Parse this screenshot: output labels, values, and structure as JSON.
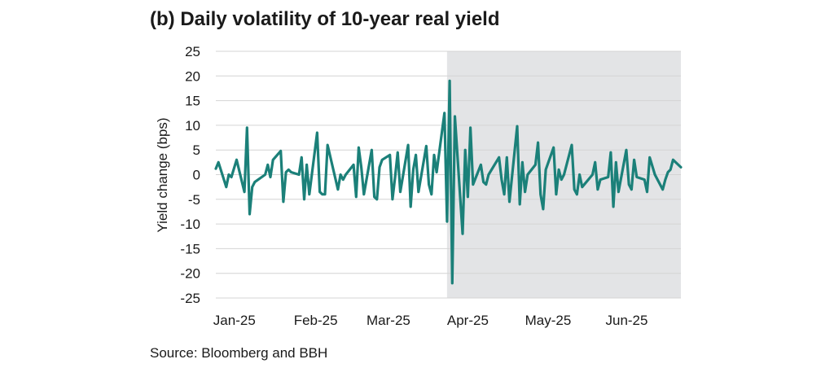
{
  "title": "(b) Daily volatility of 10-year real yield",
  "source": "Source: Bloomberg and BBH",
  "chart_data": {
    "type": "line",
    "title": "(b) Daily volatility of 10-year real yield",
    "xlabel": "",
    "ylabel": "Yield change (bps)",
    "ylim": [
      -25,
      25
    ],
    "yticks": [
      25,
      20,
      15,
      10,
      5,
      0,
      -5,
      -10,
      -15,
      -20,
      -25
    ],
    "x_range": [
      "2025-01-02",
      "2025-06-30"
    ],
    "x_ticks": [
      {
        "date": "2025-01-01",
        "label": "Jan-25"
      },
      {
        "date": "2025-02-01",
        "label": "Feb-25"
      },
      {
        "date": "2025-03-01",
        "label": "Mar-25"
      },
      {
        "date": "2025-04-01",
        "label": "Apr-25"
      },
      {
        "date": "2025-05-01",
        "label": "May-25"
      },
      {
        "date": "2025-06-01",
        "label": "Jun-25"
      }
    ],
    "shaded_region": {
      "start": "2025-04-01",
      "end": "2025-06-30",
      "color": "#e3e4e6"
    },
    "grid": "horizontal",
    "line_color": "#1b8079",
    "series": [
      {
        "name": "",
        "x": [
          "2025-01-02",
          "2025-01-03",
          "2025-01-06",
          "2025-01-07",
          "2025-01-08",
          "2025-01-10",
          "2025-01-13",
          "2025-01-14",
          "2025-01-15",
          "2025-01-16",
          "2025-01-17",
          "2025-01-21",
          "2025-01-22",
          "2025-01-23",
          "2025-01-24",
          "2025-01-27",
          "2025-01-28",
          "2025-01-29",
          "2025-01-30",
          "2025-01-31",
          "2025-02-03",
          "2025-02-04",
          "2025-02-05",
          "2025-02-06",
          "2025-02-07",
          "2025-02-10",
          "2025-02-11",
          "2025-02-12",
          "2025-02-13",
          "2025-02-14",
          "2025-02-18",
          "2025-02-19",
          "2025-02-20",
          "2025-02-21",
          "2025-02-24",
          "2025-02-25",
          "2025-02-26",
          "2025-02-27",
          "2025-02-28",
          "2025-03-03",
          "2025-03-04",
          "2025-03-05",
          "2025-03-06",
          "2025-03-07",
          "2025-03-10",
          "2025-03-11",
          "2025-03-12",
          "2025-03-13",
          "2025-03-14",
          "2025-03-17",
          "2025-03-18",
          "2025-03-19",
          "2025-03-20",
          "2025-03-21",
          "2025-03-24",
          "2025-03-25",
          "2025-03-26",
          "2025-03-27",
          "2025-03-28",
          "2025-03-31",
          "2025-04-01",
          "2025-04-02",
          "2025-04-03",
          "2025-04-04",
          "2025-04-07",
          "2025-04-08",
          "2025-04-09",
          "2025-04-10",
          "2025-04-11",
          "2025-04-14",
          "2025-04-15",
          "2025-04-16",
          "2025-04-17",
          "2025-04-21",
          "2025-04-22",
          "2025-04-23",
          "2025-04-24",
          "2025-04-25",
          "2025-04-28",
          "2025-04-29",
          "2025-04-30",
          "2025-05-01",
          "2025-05-02",
          "2025-05-05",
          "2025-05-06",
          "2025-05-07",
          "2025-05-08",
          "2025-05-09",
          "2025-05-12",
          "2025-05-13",
          "2025-05-14",
          "2025-05-15",
          "2025-05-16",
          "2025-05-19",
          "2025-05-20",
          "2025-05-21",
          "2025-05-22",
          "2025-05-23",
          "2025-05-27",
          "2025-05-28",
          "2025-05-29",
          "2025-05-30",
          "2025-06-02",
          "2025-06-03",
          "2025-06-04",
          "2025-06-05",
          "2025-06-06",
          "2025-06-09",
          "2025-06-10",
          "2025-06-11",
          "2025-06-12",
          "2025-06-13",
          "2025-06-16",
          "2025-06-17",
          "2025-06-18",
          "2025-06-20",
          "2025-06-23",
          "2025-06-24",
          "2025-06-25",
          "2025-06-26",
          "2025-06-27",
          "2025-06-30"
        ],
        "values": [
          1.2,
          2.5,
          -2.5,
          0,
          -0.5,
          3,
          -3.5,
          9.5,
          -8,
          -2.5,
          -1.5,
          0,
          2,
          -0.5,
          3,
          4.8,
          -5.5,
          0.5,
          1,
          0.5,
          0,
          3.5,
          -5,
          2,
          -4,
          8.5,
          -3.5,
          -4,
          -4,
          6,
          -3,
          0,
          -1,
          0,
          2,
          -4.5,
          5.5,
          1.5,
          -4,
          5,
          -4.5,
          -5,
          1.5,
          3,
          4,
          -5,
          -0.5,
          4.5,
          -3.5,
          6,
          -6.5,
          1,
          4,
          -3.5,
          5.8,
          -2,
          -4,
          4,
          0.5,
          12.5,
          -9.5,
          19,
          -22,
          11.8,
          -12,
          5,
          -4.5,
          9.5,
          -2,
          2,
          -1.5,
          -2,
          0,
          3.5,
          -1,
          -4,
          3.5,
          -5.5,
          9.8,
          -6,
          2.5,
          -3.5,
          0,
          2,
          6.5,
          -4,
          -7,
          1,
          5.5,
          -4,
          1,
          -1,
          0,
          6,
          -3,
          -4,
          0,
          -2.5,
          0,
          2.5,
          -3,
          -1,
          -0.5,
          4.5,
          -6.5,
          2.5,
          -3.5,
          5,
          -2,
          -3,
          3,
          -0.5,
          -1,
          -3.5,
          3.5,
          0,
          -3,
          -1,
          0.5,
          1,
          3,
          1.5
        ]
      }
    ]
  }
}
